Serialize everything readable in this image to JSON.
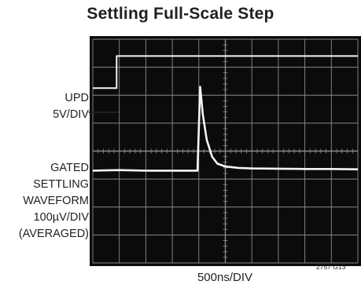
{
  "chart_data": {
    "type": "line",
    "title": "Settling Full-Scale Step",
    "xlabel": "500ns/DIV",
    "channel_labels": [
      "UPD",
      "5V/DIV",
      "GATED",
      "SETTLING",
      "WAVEFORM",
      "100µV/DIV",
      "(AVERAGED)"
    ],
    "figure_id": "2757 G13",
    "grid": true,
    "x_divisions": 10,
    "y_divisions": 8,
    "series": [
      {
        "x": [
          0,
          0.9,
          0.9,
          10
        ],
        "y": [
          6.25,
          6.25,
          7.4,
          7.4
        ]
      },
      {
        "x": [
          0,
          1,
          2,
          3,
          3.95,
          4.05,
          4.15,
          4.3,
          4.5,
          4.7,
          5.0,
          5.5,
          6,
          7,
          8,
          9,
          10
        ],
        "y": [
          3.3,
          3.32,
          3.3,
          3.3,
          3.3,
          6.3,
          5.3,
          4.4,
          3.8,
          3.55,
          3.45,
          3.4,
          3.38,
          3.37,
          3.36,
          3.36,
          3.35
        ]
      }
    ],
    "colors": {
      "screen": "#0b0b0b",
      "trace": "#f4f4f4",
      "grid": "#8a8a8a"
    }
  }
}
